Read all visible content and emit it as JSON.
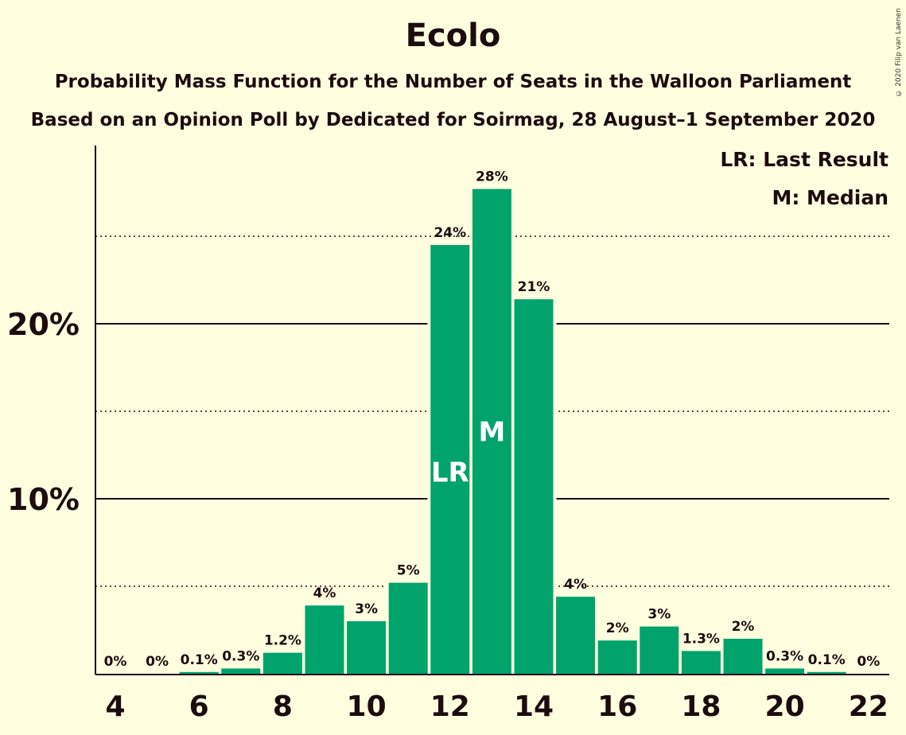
{
  "title": "Ecolo",
  "subtitle_1": "Probability Mass Function for the Number of Seats in the Walloon Parliament",
  "subtitle_2": "Based on an Opinion Poll by Dedicated for Soirmag, 28 August–1 September 2020",
  "copyright": "© 2020 Filip van Laenen",
  "colors": {
    "bar": "#00a36c",
    "background": "#ffffe0",
    "text": "#1c0c0c"
  },
  "legend": {
    "last_result": "LR: Last Result",
    "median": "M: Median",
    "placement": "top-right"
  },
  "chart_data": {
    "type": "bar",
    "title": "Ecolo",
    "categories": [
      4,
      5,
      6,
      7,
      8,
      9,
      10,
      11,
      12,
      13,
      14,
      15,
      16,
      17,
      18,
      19,
      20,
      21,
      22
    ],
    "values": [
      0,
      0,
      0.1,
      0.3,
      1.2,
      3.9,
      3.0,
      5.2,
      24.5,
      27.7,
      21.4,
      4.4,
      1.9,
      2.7,
      1.3,
      2.0,
      0.3,
      0.1,
      0
    ],
    "data_labels": [
      "0%",
      "0%",
      "0.1%",
      "0.3%",
      "1.2%",
      "4%",
      "3%",
      "5%",
      "24%",
      "28%",
      "21%",
      "4%",
      "2%",
      "3%",
      "1.3%",
      "2%",
      "0.3%",
      "0.1%",
      "0%"
    ],
    "x_tick_labels": [
      "4",
      "6",
      "8",
      "10",
      "12",
      "14",
      "16",
      "18",
      "20",
      "22"
    ],
    "y_tick_labels": [
      "10%",
      "20%"
    ],
    "y_major_ticks": [
      10,
      20
    ],
    "y_minor_gridlines": [
      5,
      15,
      25
    ],
    "ylim": [
      0,
      30
    ],
    "grid": true,
    "annotations": [
      {
        "category": 12,
        "label": "LR",
        "meaning": "Last Result"
      },
      {
        "category": 13,
        "label": "M",
        "meaning": "Median"
      }
    ]
  }
}
